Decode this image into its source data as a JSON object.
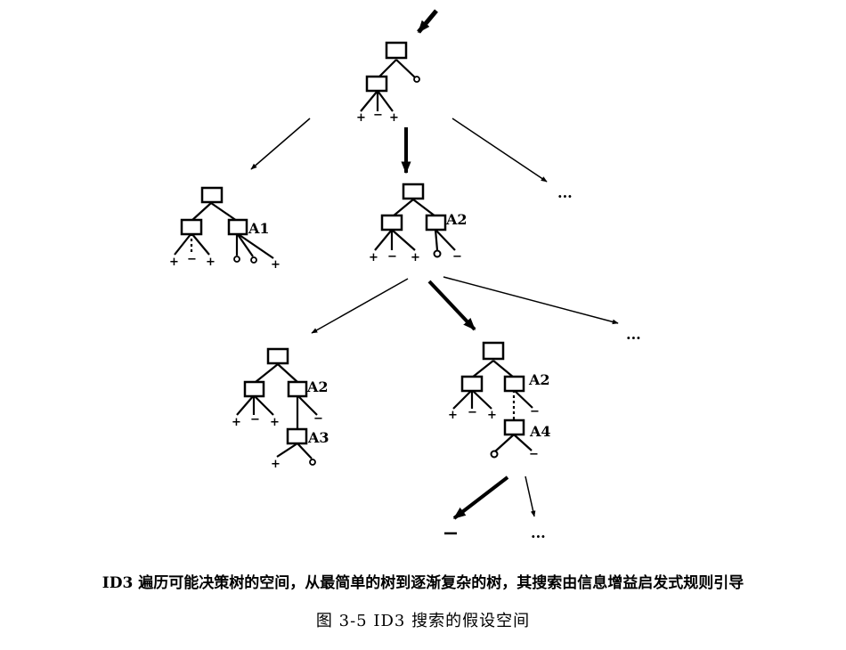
{
  "figure": {
    "description": "ID3 遍历可能决策树的空间，从最简单的树到逐渐复杂的树，其搜索由信息增益启发式规则引导",
    "caption": "图 3-5   ID3 搜索的假设空间"
  },
  "labels": {
    "a1": "A1",
    "a2_level1": "A2",
    "a2_level2_left": "A2",
    "a3": "A3",
    "a2_level2_right": "A2",
    "a4": "A4"
  },
  "signs": {
    "plus": "+",
    "minus": "−",
    "ellipsis": "..."
  }
}
